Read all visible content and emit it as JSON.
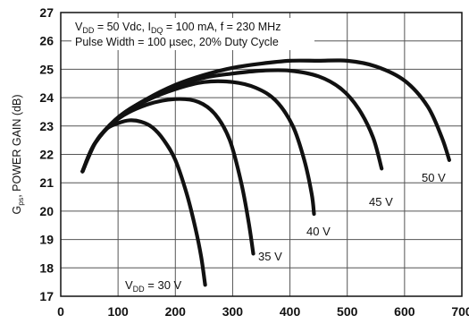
{
  "chart_data": {
    "type": "line",
    "ylabel_main": "G",
    "ylabel_sub": "ps",
    "ylabel_rest": ", POWER GAIN (dB)",
    "xlim": [
      0,
      700
    ],
    "ylim": [
      17,
      27
    ],
    "x_ticks": [
      0,
      100,
      200,
      300,
      400,
      500,
      600,
      700
    ],
    "y_ticks": [
      17,
      18,
      19,
      20,
      21,
      22,
      23,
      24,
      25,
      26,
      27
    ],
    "grid": true,
    "annotation": {
      "line1": {
        "v": "V",
        "v_sub": "DD",
        "p1": " = 50 Vdc, I",
        "i_sub": "DQ",
        "p2": " = 100 mA, f = 230 MHz"
      },
      "line2": "Pulse Width = 100 µsec, 20% Duty Cycle"
    },
    "series": [
      {
        "name": "30 V",
        "label_prefix": "V",
        "label_sub": "DD",
        "label_rest": " = 30 V",
        "x": [
          38,
          60,
          80,
          100,
          120,
          140,
          160,
          180,
          200,
          220,
          235,
          245,
          252
        ],
        "y": [
          21.4,
          22.4,
          22.9,
          23.1,
          23.2,
          23.15,
          22.95,
          22.5,
          21.8,
          20.6,
          19.4,
          18.4,
          17.4
        ]
      },
      {
        "name": "35 V",
        "label_rest": "35 V",
        "x": [
          38,
          60,
          100,
          150,
          200,
          240,
          270,
          295,
          315,
          328,
          336
        ],
        "y": [
          21.4,
          22.4,
          23.25,
          23.75,
          23.95,
          23.85,
          23.4,
          22.5,
          21.0,
          19.6,
          18.5
        ]
      },
      {
        "name": "40 V",
        "label_rest": "40 V",
        "x": [
          38,
          60,
          100,
          150,
          200,
          250,
          300,
          340,
          375,
          405,
          425,
          438,
          442
        ],
        "y": [
          21.4,
          22.4,
          23.3,
          23.9,
          24.3,
          24.55,
          24.55,
          24.35,
          23.9,
          23.0,
          21.8,
          20.6,
          19.9
        ]
      },
      {
        "name": "45 V",
        "label_rest": "45 V",
        "x": [
          38,
          60,
          100,
          150,
          200,
          250,
          300,
          350,
          400,
          450,
          490,
          520,
          545,
          560
        ],
        "y": [
          21.4,
          22.4,
          23.3,
          23.95,
          24.4,
          24.7,
          24.85,
          24.95,
          24.95,
          24.75,
          24.3,
          23.6,
          22.6,
          21.5
        ]
      },
      {
        "name": "50 V",
        "label_rest": "50 V",
        "x": [
          38,
          60,
          100,
          150,
          200,
          250,
          300,
          350,
          400,
          450,
          500,
          550,
          600,
          640,
          665,
          678
        ],
        "y": [
          21.4,
          22.4,
          23.3,
          23.95,
          24.45,
          24.8,
          25.05,
          25.2,
          25.3,
          25.3,
          25.3,
          25.1,
          24.6,
          23.7,
          22.6,
          21.8
        ]
      }
    ]
  }
}
